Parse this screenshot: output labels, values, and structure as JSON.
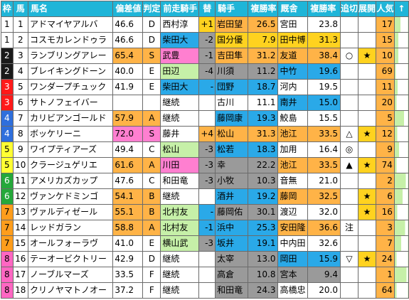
{
  "headers": [
    "枠",
    "馬",
    "馬名",
    "偏差値",
    "判定",
    "前走騎手",
    "替",
    "騎手",
    "複勝率",
    "厩舎",
    "複勝率",
    "追切",
    "展開",
    "人気",
    "↑"
  ],
  "rows": [
    {
      "waku": "1",
      "uma": "1",
      "name": "アドマイヤアルバ",
      "hensa": "46.6",
      "hantei": "D",
      "prev": "西村淳",
      "kae": "+1",
      "jockey": "岩田望",
      "jrate": "26.5",
      "stable": "宮田",
      "srate": "23.8",
      "oikiri": "",
      "tenkai": "",
      "ninki": "17",
      "bar": 0.45
    },
    {
      "waku": "1",
      "uma": "2",
      "name": "コスモカレンドゥラ",
      "hensa": "46.6",
      "hantei": "D",
      "prev": "柴田大",
      "kae": "-2",
      "jockey": "国分優",
      "jrate": "7.9",
      "stable": "田中博",
      "srate": "31.3",
      "oikiri": "",
      "tenkai": "",
      "ninki": "15",
      "bar": 0.3
    },
    {
      "waku": "2",
      "uma": "3",
      "name": "ランブリングアレー",
      "hensa": "65.4",
      "hantei": "S",
      "prev": "武豊",
      "kae": "-1",
      "jockey": "吉田隼",
      "jrate": "31.2",
      "stable": "友道",
      "srate": "38.4",
      "oikiri": "○",
      "tenkai": "★",
      "ninki": "10",
      "bar": 0.3
    },
    {
      "waku": "2",
      "uma": "4",
      "name": "ブレイキングドーン",
      "hensa": "40.0",
      "hantei": "E",
      "prev": "田辺",
      "kae": "-4",
      "jockey": "川須",
      "jrate": "11.2",
      "stable": "中竹",
      "srate": "19.6",
      "oikiri": "",
      "tenkai": "",
      "ninki": "69",
      "bar": 0.1
    },
    {
      "waku": "3",
      "uma": "5",
      "name": "ワンダープチュック",
      "hensa": "41.9",
      "hantei": "E",
      "prev": "柴田大",
      "kae": "-",
      "jockey": "団野",
      "jrate": "18.7",
      "stable": "河内",
      "srate": "19.5",
      "oikiri": "",
      "tenkai": "",
      "ninki": "11",
      "bar": 0.25
    },
    {
      "waku": "3",
      "uma": "6",
      "name": "サトノフェイバー",
      "hensa": "",
      "hantei": "",
      "prev": "継続",
      "kae": "",
      "jockey": "古川",
      "jrate": "11.1",
      "stable": "南井",
      "srate": "15.0",
      "oikiri": "",
      "tenkai": "",
      "ninki": "20",
      "bar": 0.15
    },
    {
      "waku": "4",
      "uma": "7",
      "name": "カリビアンゴールド",
      "hensa": "57.9",
      "hantei": "A",
      "prev": "継続",
      "kae": "",
      "jockey": "藤岡康",
      "jrate": "19.3",
      "stable": "鮫島",
      "srate": "15.5",
      "oikiri": "",
      "tenkai": "",
      "ninki": "5",
      "bar": 0.7
    },
    {
      "waku": "4",
      "uma": "8",
      "name": "ボッケリーニ",
      "hensa": "72.0",
      "hantei": "S",
      "prev": "藤井",
      "kae": "+4",
      "jockey": "松山",
      "jrate": "31.3",
      "stable": "池江",
      "srate": "33.5",
      "oikiri": "△",
      "tenkai": "★",
      "ninki": "12",
      "bar": 0.2
    },
    {
      "waku": "5",
      "uma": "9",
      "name": "ワイプティアーズ",
      "hensa": "49.4",
      "hantei": "C",
      "prev": "松山",
      "kae": "-3",
      "jockey": "松若",
      "jrate": "18.3",
      "stable": "加用",
      "srate": "16.4",
      "oikiri": "◎",
      "tenkai": "",
      "ninki": "9",
      "bar": 0.35
    },
    {
      "waku": "5",
      "uma": "10",
      "name": "クラージュゲリエ",
      "hensa": "61.6",
      "hantei": "A",
      "prev": "川田",
      "kae": "-3",
      "jockey": "幸",
      "jrate": "22.2",
      "stable": "池江",
      "srate": "33.5",
      "oikiri": "▲",
      "tenkai": "★",
      "ninki": "74",
      "bar": 0.15
    },
    {
      "waku": "6",
      "uma": "11",
      "name": "アメリカズカップ",
      "hensa": "47.6",
      "hantei": "C",
      "prev": "和田竜",
      "kae": "-3",
      "jockey": "小牧",
      "jrate": "10.3",
      "stable": "音無",
      "srate": "21.0",
      "oikiri": "",
      "tenkai": "",
      "ninki": "2",
      "bar": 0.85
    },
    {
      "waku": "6",
      "uma": "12",
      "name": "ヴァンケドミンゴ",
      "hensa": "54.1",
      "hantei": "B",
      "prev": "継続",
      "kae": "",
      "jockey": "酒井",
      "jrate": "19.2",
      "stable": "藤岡",
      "srate": "32.5",
      "oikiri": "",
      "tenkai": "★",
      "ninki": "6",
      "bar": 0.6
    },
    {
      "waku": "7",
      "uma": "13",
      "name": "ヴァルディゼール",
      "hensa": "55.1",
      "hantei": "B",
      "prev": "北村友",
      "kae": "-",
      "jockey": "藤岡佑",
      "jrate": "30.1",
      "stable": "渡辺",
      "srate": "32.0",
      "oikiri": "",
      "tenkai": "★",
      "ninki": "16",
      "bar": 0.2
    },
    {
      "waku": "7",
      "uma": "14",
      "name": "レッドガラン",
      "hensa": "58.8",
      "hantei": "A",
      "prev": "北村友",
      "kae": "-1",
      "jockey": "浜中",
      "jrate": "25.3",
      "stable": "安田隆",
      "srate": "36.6",
      "oikiri": "注",
      "tenkai": "",
      "ninki": "3",
      "bar": 0.8
    },
    {
      "waku": "7",
      "uma": "15",
      "name": "オールフォーラヴ",
      "hensa": "41.0",
      "hantei": "E",
      "prev": "横山武",
      "kae": "-3",
      "jockey": "坂井",
      "jrate": "19.1",
      "stable": "中内田",
      "srate": "32.6",
      "oikiri": "",
      "tenkai": "",
      "ninki": "7",
      "bar": 0.5
    },
    {
      "waku": "8",
      "uma": "16",
      "name": "テーオービクトリー",
      "hensa": "42.9",
      "hantei": "D",
      "prev": "継続",
      "kae": "",
      "jockey": "太宰",
      "jrate": "13.0",
      "stable": "岡田",
      "srate": "15.9",
      "oikiri": "▽",
      "tenkai": "★",
      "ninki": "24",
      "bar": 0.15
    },
    {
      "waku": "8",
      "uma": "17",
      "name": "ノーブルマーズ",
      "hensa": "33.5",
      "hantei": "F",
      "prev": "継続",
      "kae": "",
      "jockey": "高倉",
      "jrate": "10.8",
      "stable": "宮本",
      "srate": "9.4",
      "oikiri": "",
      "tenkai": "",
      "ninki": "1",
      "bar": 0.9
    },
    {
      "waku": "8",
      "uma": "18",
      "name": "クリノヤマトノオー",
      "hensa": "37.2",
      "hantei": "F",
      "prev": "継続",
      "kae": "",
      "jockey": "和田竜",
      "jrate": "24.3",
      "stable": "高橋忠",
      "srate": "20.0",
      "oikiri": "",
      "tenkai": "",
      "ninki": "64",
      "bar": 0.15
    }
  ],
  "colors": {
    "header": "#1fb5d8",
    "hensa_hi": "#ffb347",
    "hensa_lo": "#2aa9e8"
  }
}
